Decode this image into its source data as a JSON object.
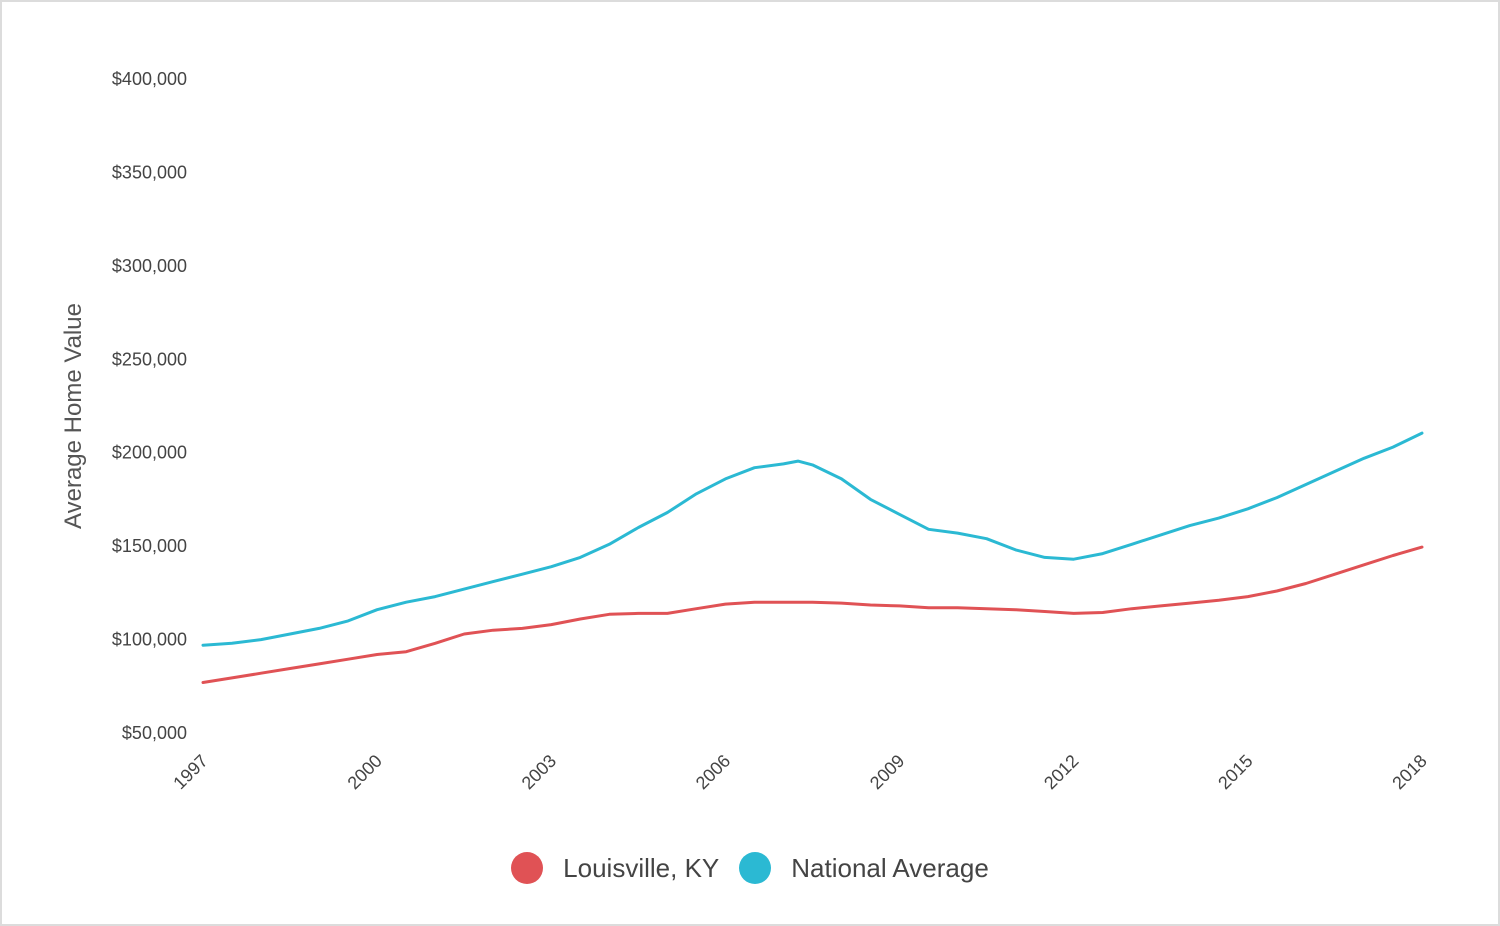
{
  "chart_data": {
    "type": "line",
    "ylabel": "Average Home Value",
    "xlabel": "",
    "ylim": [
      50000,
      400000
    ],
    "xlim": [
      1997,
      2018
    ],
    "y_ticks": [
      {
        "value": 400000,
        "label": "$400,000"
      },
      {
        "value": 350000,
        "label": "$350,000"
      },
      {
        "value": 300000,
        "label": "$300,000"
      },
      {
        "value": 250000,
        "label": "$250,000"
      },
      {
        "value": 200000,
        "label": "$200,000"
      },
      {
        "value": 150000,
        "label": "$150,000"
      },
      {
        "value": 100000,
        "label": "$100,000"
      },
      {
        "value": 50000,
        "label": "$50,000"
      }
    ],
    "x_ticks": [
      {
        "value": 1997,
        "label": "1997"
      },
      {
        "value": 2000,
        "label": "2000"
      },
      {
        "value": 2003,
        "label": "2003"
      },
      {
        "value": 2006,
        "label": "2006"
      },
      {
        "value": 2009,
        "label": "2009"
      },
      {
        "value": 2012,
        "label": "2012"
      },
      {
        "value": 2015,
        "label": "2015"
      },
      {
        "value": 2018,
        "label": "2018"
      }
    ],
    "grid": false,
    "legend_position": "bottom",
    "series": [
      {
        "name": "Louisville, KY",
        "color": "#e05255",
        "points": [
          [
            1997.0,
            77000
          ],
          [
            1997.5,
            79500
          ],
          [
            1998.0,
            82000
          ],
          [
            1998.5,
            84500
          ],
          [
            1999.0,
            87000
          ],
          [
            1999.5,
            89500
          ],
          [
            2000.0,
            92000
          ],
          [
            2000.5,
            93500
          ],
          [
            2001.0,
            98000
          ],
          [
            2001.5,
            103000
          ],
          [
            2002.0,
            105000
          ],
          [
            2002.5,
            106000
          ],
          [
            2003.0,
            108000
          ],
          [
            2003.5,
            111000
          ],
          [
            2004.0,
            113500
          ],
          [
            2004.5,
            114000
          ],
          [
            2005.0,
            114000
          ],
          [
            2005.5,
            116500
          ],
          [
            2006.0,
            119000
          ],
          [
            2006.5,
            120000
          ],
          [
            2007.0,
            120000
          ],
          [
            2007.5,
            120000
          ],
          [
            2008.0,
            119500
          ],
          [
            2008.5,
            118500
          ],
          [
            2009.0,
            118000
          ],
          [
            2009.5,
            117000
          ],
          [
            2010.0,
            117000
          ],
          [
            2010.5,
            116500
          ],
          [
            2011.0,
            116000
          ],
          [
            2011.5,
            115000
          ],
          [
            2012.0,
            114000
          ],
          [
            2012.5,
            114500
          ],
          [
            2013.0,
            116500
          ],
          [
            2013.5,
            118000
          ],
          [
            2014.0,
            119500
          ],
          [
            2014.5,
            121000
          ],
          [
            2015.0,
            123000
          ],
          [
            2015.5,
            126000
          ],
          [
            2016.0,
            130000
          ],
          [
            2016.5,
            135000
          ],
          [
            2017.0,
            140000
          ],
          [
            2017.5,
            145000
          ],
          [
            2018.0,
            149500
          ]
        ]
      },
      {
        "name": "National Average",
        "color": "#2bb9d3",
        "points": [
          [
            1997.0,
            97000
          ],
          [
            1997.5,
            98000
          ],
          [
            1998.0,
            100000
          ],
          [
            1998.5,
            103000
          ],
          [
            1999.0,
            106000
          ],
          [
            1999.5,
            110000
          ],
          [
            2000.0,
            116000
          ],
          [
            2000.5,
            120000
          ],
          [
            2001.0,
            123000
          ],
          [
            2001.5,
            127000
          ],
          [
            2002.0,
            131000
          ],
          [
            2002.5,
            135000
          ],
          [
            2003.0,
            139000
          ],
          [
            2003.5,
            144000
          ],
          [
            2004.0,
            151000
          ],
          [
            2004.5,
            160000
          ],
          [
            2005.0,
            168000
          ],
          [
            2005.5,
            178000
          ],
          [
            2006.0,
            186000
          ],
          [
            2006.5,
            192000
          ],
          [
            2007.0,
            194000
          ],
          [
            2007.25,
            195500
          ],
          [
            2007.5,
            193500
          ],
          [
            2008.0,
            186000
          ],
          [
            2008.5,
            175000
          ],
          [
            2009.0,
            167000
          ],
          [
            2009.5,
            159000
          ],
          [
            2010.0,
            157000
          ],
          [
            2010.5,
            154000
          ],
          [
            2011.0,
            148000
          ],
          [
            2011.5,
            144000
          ],
          [
            2012.0,
            143000
          ],
          [
            2012.5,
            146000
          ],
          [
            2013.0,
            151000
          ],
          [
            2013.5,
            156000
          ],
          [
            2014.0,
            161000
          ],
          [
            2014.5,
            165000
          ],
          [
            2015.0,
            170000
          ],
          [
            2015.5,
            176000
          ],
          [
            2016.0,
            183000
          ],
          [
            2016.5,
            190000
          ],
          [
            2017.0,
            197000
          ],
          [
            2017.5,
            203000
          ],
          [
            2018.0,
            210500
          ]
        ]
      }
    ]
  }
}
